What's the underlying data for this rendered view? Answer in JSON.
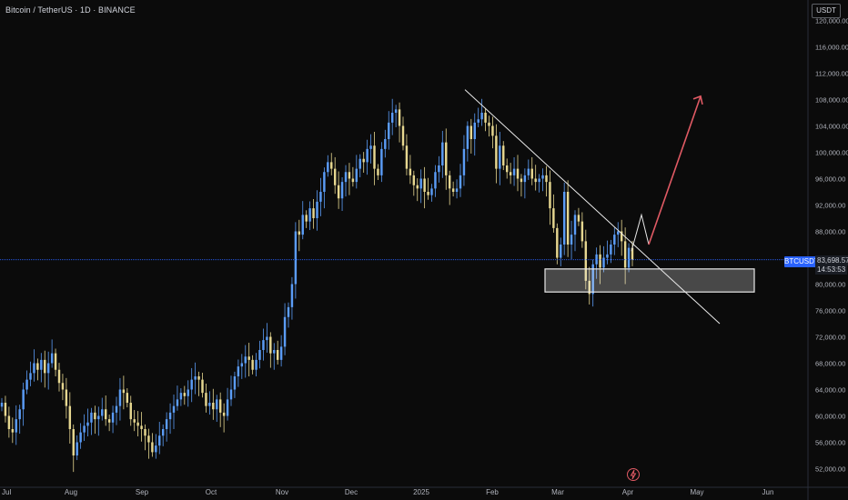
{
  "header": {
    "title": "Bitcoin / TetherUS · 1D · BINANCE",
    "currency": "USDT"
  },
  "price_tag": {
    "symbol": "BTCUSDT",
    "value": "83,698.57",
    "timer": "14:53:53"
  },
  "colors": {
    "background": "#0b0b0b",
    "up_candle": "#5b9cf6",
    "down_candle": "#e6d790",
    "trendline": "#e8e8e8",
    "projection_up": "#e05a64",
    "last_price_line": "#2962ff",
    "support_zone": "#e8e8e8"
  },
  "chart_data": {
    "type": "candlestick",
    "symbol": "Bitcoin / TetherUS",
    "interval": "1D",
    "exchange": "BINANCE",
    "y_axis": {
      "side": "right",
      "ticks": [
        "120,000.00",
        "116,000.00",
        "112,000.00",
        "108,000.00",
        "104,000.00",
        "100,000.00",
        "96,000.00",
        "92,000.00",
        "88,000.00",
        "84,000.00",
        "80,000.00",
        "76,000.00",
        "72,000.00",
        "68,000.00",
        "64,000.00",
        "60,000.00",
        "56,000.00",
        "52,000.00"
      ],
      "ylim": [
        50000,
        122000
      ]
    },
    "x_axis": {
      "ticks": [
        "Jul",
        "Aug",
        "Sep",
        "Oct",
        "Nov",
        "Dec",
        "2025",
        "Feb",
        "Mar",
        "Apr",
        "May",
        "Jun"
      ]
    },
    "last_price": 83698.57,
    "series_close": [
      [
        "Jul",
        62000
      ],
      [
        "Jul",
        60000
      ],
      [
        "Jul",
        58000
      ],
      [
        "Jul",
        57500
      ],
      [
        "Jul",
        59500
      ],
      [
        "Jul",
        61000
      ],
      [
        "Jul",
        64000
      ],
      [
        "Jul",
        65500
      ],
      [
        "Jul",
        66500
      ],
      [
        "Jul",
        68000
      ],
      [
        "Jul",
        67000
      ],
      [
        "Jul",
        68500
      ],
      [
        "Jul",
        66500
      ],
      [
        "Jul",
        68000
      ],
      [
        "Jul",
        69500
      ],
      [
        "Jul",
        67000
      ],
      [
        "Jul",
        65000
      ],
      [
        "Jul",
        64000
      ],
      [
        "Aug",
        61500
      ],
      [
        "Aug",
        58000
      ],
      [
        "Aug",
        54000
      ],
      [
        "Aug",
        56000
      ],
      [
        "Aug",
        57500
      ],
      [
        "Aug",
        58500
      ],
      [
        "Aug",
        59000
      ],
      [
        "Aug",
        60500
      ],
      [
        "Aug",
        59500
      ],
      [
        "Aug",
        60000
      ],
      [
        "Aug",
        61000
      ],
      [
        "Aug",
        59500
      ],
      [
        "Aug",
        59000
      ],
      [
        "Aug",
        60500
      ],
      [
        "Aug",
        61500
      ],
      [
        "Aug",
        64000
      ],
      [
        "Aug",
        63500
      ],
      [
        "Aug",
        62000
      ],
      [
        "Aug",
        59500
      ],
      [
        "Aug",
        59000
      ],
      [
        "Aug",
        58500
      ],
      [
        "Sep",
        58000
      ],
      [
        "Sep",
        57000
      ],
      [
        "Sep",
        56000
      ],
      [
        "Sep",
        54500
      ],
      [
        "Sep",
        55500
      ],
      [
        "Sep",
        57000
      ],
      [
        "Sep",
        58000
      ],
      [
        "Sep",
        59500
      ],
      [
        "Sep",
        60500
      ],
      [
        "Sep",
        61500
      ],
      [
        "Sep",
        62500
      ],
      [
        "Sep",
        63500
      ],
      [
        "Sep",
        63000
      ],
      [
        "Sep",
        64000
      ],
      [
        "Sep",
        65500
      ],
      [
        "Sep",
        66000
      ],
      [
        "Sep",
        65500
      ],
      [
        "Oct",
        63500
      ],
      [
        "Oct",
        61500
      ],
      [
        "Oct",
        62000
      ],
      [
        "Oct",
        61000
      ],
      [
        "Oct",
        62500
      ],
      [
        "Oct",
        60500
      ],
      [
        "Oct",
        60000
      ],
      [
        "Oct",
        62500
      ],
      [
        "Oct",
        64000
      ],
      [
        "Oct",
        66000
      ],
      [
        "Oct",
        67500
      ],
      [
        "Oct",
        68000
      ],
      [
        "Oct",
        69000
      ],
      [
        "Oct",
        68500
      ],
      [
        "Oct",
        67000
      ],
      [
        "Oct",
        68500
      ],
      [
        "Oct",
        70000
      ],
      [
        "Oct",
        71500
      ],
      [
        "Oct",
        72000
      ],
      [
        "Oct",
        69500
      ],
      [
        "Nov",
        70000
      ],
      [
        "Nov",
        68500
      ],
      [
        "Nov",
        70500
      ],
      [
        "Nov",
        75000
      ],
      [
        "Nov",
        76500
      ],
      [
        "Nov",
        80000
      ],
      [
        "Nov",
        88000
      ],
      [
        "Nov",
        87500
      ],
      [
        "Nov",
        90500
      ],
      [
        "Nov",
        89500
      ],
      [
        "Nov",
        91500
      ],
      [
        "Nov",
        90000
      ],
      [
        "Nov",
        92500
      ],
      [
        "Nov",
        94000
      ],
      [
        "Nov",
        97000
      ],
      [
        "Nov",
        98500
      ],
      [
        "Nov",
        97500
      ],
      [
        "Nov",
        95000
      ],
      [
        "Nov",
        93000
      ],
      [
        "Nov",
        95500
      ],
      [
        "Dec",
        97000
      ],
      [
        "Dec",
        96000
      ],
      [
        "Dec",
        95500
      ],
      [
        "Dec",
        97500
      ],
      [
        "Dec",
        99000
      ],
      [
        "Dec",
        98500
      ],
      [
        "Dec",
        100500
      ],
      [
        "Dec",
        101000
      ],
      [
        "Dec",
        97500
      ],
      [
        "Dec",
        96500
      ],
      [
        "Dec",
        100500
      ],
      [
        "Dec",
        102000
      ],
      [
        "Dec",
        104500
      ],
      [
        "Dec",
        106000
      ],
      [
        "Dec",
        106500
      ],
      [
        "Dec",
        104000
      ],
      [
        "Dec",
        101000
      ],
      [
        "Dec",
        97500
      ],
      [
        "Dec",
        96500
      ],
      [
        "Dec",
        95000
      ],
      [
        "Dec",
        94500
      ],
      [
        "Dec",
        96000
      ],
      [
        "Dec",
        94000
      ],
      [
        "Dec",
        93500
      ],
      [
        "2025",
        94500
      ],
      [
        "2025",
        97000
      ],
      [
        "2025",
        98000
      ],
      [
        "2025",
        101500
      ],
      [
        "2025",
        96500
      ],
      [
        "2025",
        94500
      ],
      [
        "2025",
        94000
      ],
      [
        "2025",
        94500
      ],
      [
        "2025",
        96500
      ],
      [
        "2025",
        100500
      ],
      [
        "2025",
        104000
      ],
      [
        "2025",
        102000
      ],
      [
        "2025",
        104500
      ],
      [
        "2025",
        105000
      ],
      [
        "2025",
        106000
      ],
      [
        "2025",
        104500
      ],
      [
        "2025",
        104000
      ],
      [
        "2025",
        102500
      ],
      [
        "Feb",
        97500
      ],
      [
        "Feb",
        101000
      ],
      [
        "Feb",
        98000
      ],
      [
        "Feb",
        97000
      ],
      [
        "Feb",
        96500
      ],
      [
        "Feb",
        97500
      ],
      [
        "Feb",
        96000
      ],
      [
        "Feb",
        95500
      ],
      [
        "Feb",
        96500
      ],
      [
        "Feb",
        97500
      ],
      [
        "Feb",
        96000
      ],
      [
        "Feb",
        95500
      ],
      [
        "Feb",
        96000
      ],
      [
        "Feb",
        96500
      ],
      [
        "Feb",
        95500
      ],
      [
        "Feb",
        91500
      ],
      [
        "Feb",
        88500
      ],
      [
        "Feb",
        84000
      ],
      [
        "Mar",
        86000
      ],
      [
        "Mar",
        94000
      ],
      [
        "Mar",
        86000
      ],
      [
        "Mar",
        87500
      ],
      [
        "Mar",
        90500
      ],
      [
        "Mar",
        89500
      ],
      [
        "Mar",
        86500
      ],
      [
        "Mar",
        80500
      ],
      [
        "Mar",
        78500
      ],
      [
        "Mar",
        83000
      ],
      [
        "Mar",
        84500
      ],
      [
        "Mar",
        82500
      ],
      [
        "Mar",
        84000
      ],
      [
        "Mar",
        84500
      ],
      [
        "Mar",
        86000
      ],
      [
        "Mar",
        87500
      ],
      [
        "Mar",
        88000
      ],
      [
        "Mar",
        86500
      ],
      [
        "Apr",
        82500
      ],
      [
        "Apr",
        85500
      ],
      [
        "Apr",
        83700
      ]
    ],
    "annotations": {
      "descending_trendline": {
        "from": [
          " Jan 20",
          109500
        ],
        "to": [
          "Apr 25",
          74000
        ]
      },
      "support_zone": {
        "low": 78800,
        "high": 82300
      },
      "projection": [
        [
          85000
        ],
        [
          90500
        ],
        [
          86000
        ],
        [
          108500
        ]
      ]
    }
  }
}
